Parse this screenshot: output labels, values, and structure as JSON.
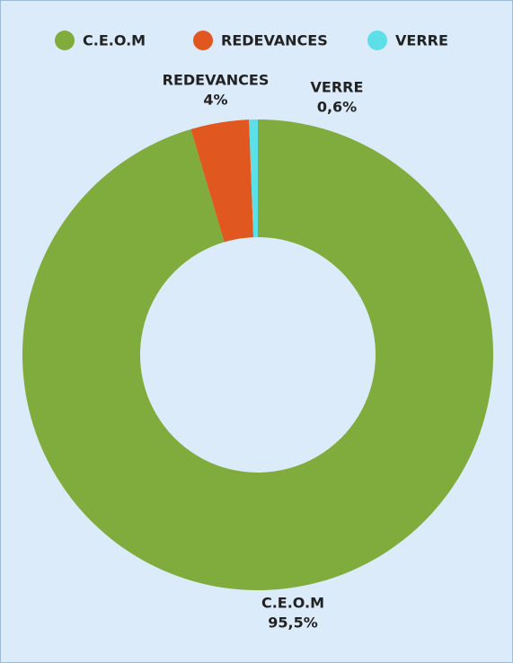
{
  "chart_data": {
    "type": "donut",
    "categories": [
      "C.E.O.M",
      "REDEVANCES",
      "VERRE"
    ],
    "values": [
      95.5,
      4,
      0.6
    ],
    "value_labels": [
      "95,5%",
      "4%",
      "0,6%"
    ],
    "colors": [
      "#7fac3c",
      "#e0581f",
      "#5ddfe8"
    ],
    "legend": "top"
  }
}
